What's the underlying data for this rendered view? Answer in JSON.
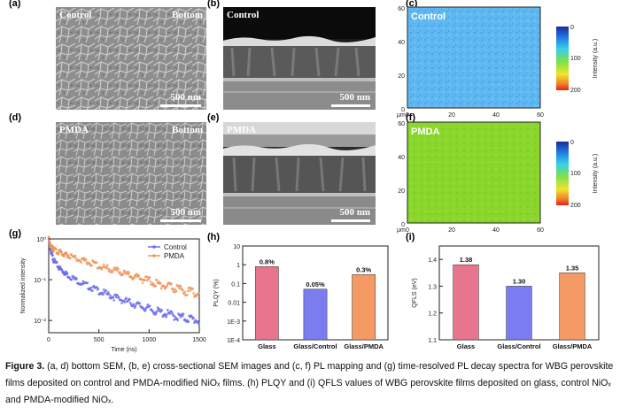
{
  "panels": {
    "a": {
      "label": "(a)",
      "tag_left": "Control",
      "tag_right": "Bottom",
      "scale": "500 nm"
    },
    "b": {
      "label": "(b)",
      "tag_left": "Control",
      "scale": "500 nm"
    },
    "c": {
      "label": "(c)",
      "tag": "Control"
    },
    "d": {
      "label": "(d)",
      "tag_left": "PMDA",
      "tag_right": "Bottom",
      "scale": "500 nm"
    },
    "e": {
      "label": "(e)",
      "tag_left": "PMDA",
      "scale": "500 nm"
    },
    "f": {
      "label": "(f)",
      "tag": "PMDA"
    },
    "g": {
      "label": "(g)"
    },
    "h": {
      "label": "(h)"
    },
    "i": {
      "label": "(i)"
    }
  },
  "pl_map": {
    "unit": "μm",
    "x_ticks": [
      "0",
      "20",
      "40",
      "60"
    ],
    "y_ticks": [
      "60",
      "40",
      "20",
      "0"
    ],
    "colorbar_ticks": [
      "0",
      "100",
      "200"
    ],
    "colorbar_label": "Intensity (a.u.)",
    "control_color": "#5fb8f0",
    "pmda_color": "#8bd62d"
  },
  "chart_data": [
    {
      "type": "scatter",
      "panel": "g",
      "xlabel": "Time (ns)",
      "ylabel": "Normalized intensity",
      "xlim": [
        0,
        1500
      ],
      "ylim": [
        0.005,
        1
      ],
      "yscale": "log",
      "x_ticks": [
        "0",
        "500",
        "1000",
        "1500"
      ],
      "y_ticks": [
        "10⁰",
        "10⁻¹",
        "10⁻²"
      ],
      "legend": [
        "Control",
        "PMDA"
      ],
      "legend_position": "top-right",
      "series": [
        {
          "name": "Control",
          "color": "#6d6ee8",
          "x": [
            0,
            25,
            50,
            100,
            150,
            200,
            300,
            400,
            500,
            600,
            700,
            800,
            900,
            1000,
            1100,
            1200,
            1300,
            1400,
            1500
          ],
          "values": [
            1.0,
            0.45,
            0.3,
            0.2,
            0.155,
            0.125,
            0.09,
            0.068,
            0.053,
            0.042,
            0.034,
            0.028,
            0.023,
            0.019,
            0.016,
            0.014,
            0.012,
            0.011,
            0.01
          ]
        },
        {
          "name": "PMDA",
          "color": "#f0965a",
          "x": [
            0,
            25,
            50,
            100,
            150,
            200,
            300,
            400,
            500,
            600,
            700,
            800,
            900,
            1000,
            1100,
            1200,
            1300,
            1400,
            1500
          ],
          "values": [
            1.0,
            0.62,
            0.55,
            0.48,
            0.43,
            0.39,
            0.32,
            0.27,
            0.22,
            0.185,
            0.155,
            0.13,
            0.11,
            0.092,
            0.078,
            0.067,
            0.058,
            0.05,
            0.044
          ]
        }
      ]
    },
    {
      "type": "bar",
      "panel": "h",
      "ylabel": "PLQY (%)",
      "yscale": "log",
      "ylim": [
        0.0001,
        10
      ],
      "y_ticks": [
        "10",
        "1",
        "0.1",
        "0.01",
        "1E-3",
        "1E-4"
      ],
      "categories": [
        "Glass",
        "Glass/Control",
        "Glass/PMDA"
      ],
      "values": [
        0.8,
        0.05,
        0.3
      ],
      "data_labels": [
        "0.8%",
        "0.05%",
        "0.3%"
      ],
      "colors": [
        "#e8748d",
        "#7a7cf0",
        "#f49a64"
      ]
    },
    {
      "type": "bar",
      "panel": "i",
      "ylabel": "QFLS (eV)",
      "ylim": [
        1.1,
        1.45
      ],
      "y_ticks": [
        "1.4",
        "1.3",
        "1.2",
        "1.1"
      ],
      "categories": [
        "Glass",
        "Glass/Control",
        "Glass/PMDA"
      ],
      "values": [
        1.38,
        1.3,
        1.35
      ],
      "data_labels": [
        "1.38",
        "1.30",
        "1.35"
      ],
      "colors": [
        "#e8748d",
        "#7a7cf0",
        "#f49a64"
      ]
    }
  ],
  "caption": {
    "bold": "Figure 3.",
    "text": " (a, d) bottom SEM, (b, e) cross-sectional SEM images and (c, f) PL mapping and (g) time-resolved PL decay spectra for WBG perovskite films deposited on control and PMDA-modified NiOₓ films. (h) PLQY and (i) QFLS values of WBG perovskite films deposited on glass, control NiOₓ and PMDA-modified NiOₓ."
  }
}
